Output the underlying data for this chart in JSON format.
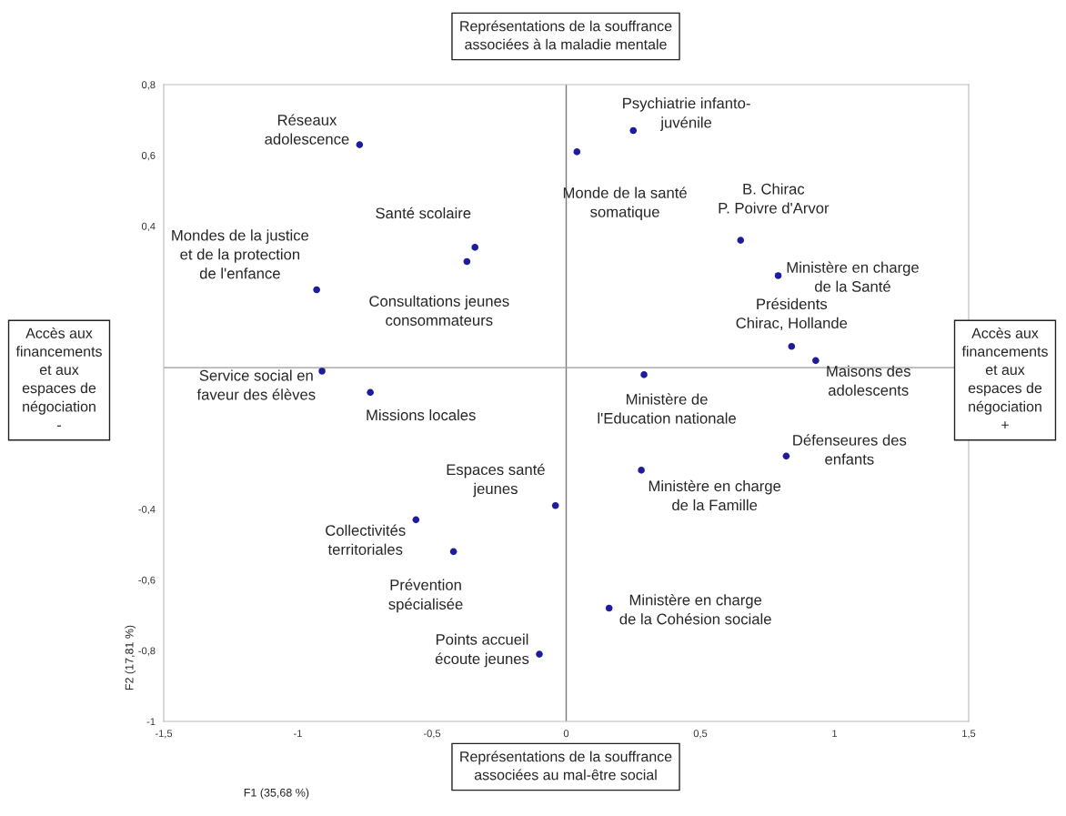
{
  "chart_data": {
    "type": "scatter",
    "xlabel": "F1 (35,68 %)",
    "ylabel": "F2 (17,81 %)",
    "x": [
      -0.77,
      0.04,
      0.25,
      -0.34,
      -0.37,
      -0.93,
      0.65,
      0.79,
      0.84,
      0.93,
      -0.91,
      -0.73,
      0.29,
      0.82,
      0.28,
      -0.04,
      -0.56,
      -0.42,
      0.16,
      -0.1
    ],
    "series": [
      {
        "color": "#1c1c9c",
        "values": [
          0.63,
          0.61,
          0.67,
          0.34,
          0.3,
          0.22,
          0.36,
          0.26,
          0.06,
          0.02,
          -0.01,
          -0.07,
          -0.02,
          -0.25,
          -0.29,
          -0.39,
          -0.43,
          -0.52,
          -0.68,
          -0.81
        ]
      }
    ],
    "marker": "circle",
    "xlim": [
      -1.5,
      1.5
    ],
    "xticks": [
      {
        "value": -1.5,
        "label": "-1,5"
      },
      {
        "value": -1,
        "label": "-1"
      },
      {
        "value": -0.5,
        "label": "-0,5"
      },
      0,
      {
        "value": 0.5,
        "label": "0,5"
      },
      1,
      {
        "value": 1.5,
        "label": "1,5"
      }
    ],
    "ylim": [
      -1,
      0.8
    ],
    "yticks": [
      -1,
      {
        "value": -0.8,
        "label": "-0,8"
      },
      {
        "value": -0.6,
        "label": "-0,6"
      },
      {
        "value": -0.4,
        "label": "-0,4"
      },
      {
        "value": 0.4,
        "label": "0,4"
      },
      {
        "value": 0.6,
        "label": "0,6"
      },
      {
        "value": 0.8,
        "label": "0,8"
      }
    ],
    "ref_lines": [
      {
        "axis": "x",
        "value": 0,
        "color": "#7a7a7a"
      },
      {
        "axis": "y",
        "value": 0,
        "color": "#9a9a9a"
      }
    ],
    "grid": false,
    "legend": false,
    "annotations": [
      "Représentations de la souffrance\nassociées à la maladie mentale",
      "Représentations de la souffrance\nassociées au mal-être social",
      "Accès aux\nfinancements\net aux\nespaces de\nnégociation\n-",
      "Accès aux\nfinancements\net aux\nespaces de\nnégociation\n+",
      {
        "text": "Réseaux\nadolescence",
        "x": -0.77,
        "y": 0.63
      },
      {
        "text": "Monde de la santé\nsomatique",
        "x": 0.04,
        "y": 0.61
      },
      {
        "text": "Psychiatrie infanto-\njuvénile",
        "x": 0.25,
        "y": 0.67
      },
      {
        "text": "Santé scolaire",
        "x": -0.34,
        "y": 0.34
      },
      {
        "text": "Consultations jeunes\nconsommateurs",
        "x": -0.37,
        "y": 0.3
      },
      {
        "text": "Mondes de la justice\net de la protection\nde l'enfance",
        "x": -0.93,
        "y": 0.22
      },
      {
        "text": "B. Chirac\nP. Poivre d'Arvor",
        "x": 0.65,
        "y": 0.36
      },
      {
        "text": "Ministère en charge\nde la Santé",
        "x": 0.79,
        "y": 0.26
      },
      {
        "text": "Présidents\nChirac, Hollande",
        "x": 0.84,
        "y": 0.06
      },
      {
        "text": "Maisons des\nadolescents",
        "x": 0.93,
        "y": 0.02
      },
      {
        "text": "Service social en\nfaveur des élèves",
        "x": -0.91,
        "y": -0.01
      },
      {
        "text": "Missions locales",
        "x": -0.73,
        "y": -0.07
      },
      {
        "text": "Ministère de\nl'Education nationale",
        "x": 0.29,
        "y": -0.02
      },
      {
        "text": "Défenseures des\nenfants",
        "x": 0.82,
        "y": -0.25
      },
      {
        "text": "Ministère en charge\nde la Famille",
        "x": 0.28,
        "y": -0.29
      },
      {
        "text": "Espaces santé\njeunes",
        "x": -0.04,
        "y": -0.39
      },
      {
        "text": "Collectivités\nterritoriales",
        "x": -0.56,
        "y": -0.43
      },
      {
        "text": "Prévention\nspécialisée",
        "x": -0.42,
        "y": -0.52
      },
      {
        "text": "Ministère en charge\nde la Cohésion sociale",
        "x": 0.16,
        "y": -0.68
      },
      {
        "text": "Points accueil\nécoute jeunes",
        "x": -0.1,
        "y": -0.81
      }
    ]
  }
}
